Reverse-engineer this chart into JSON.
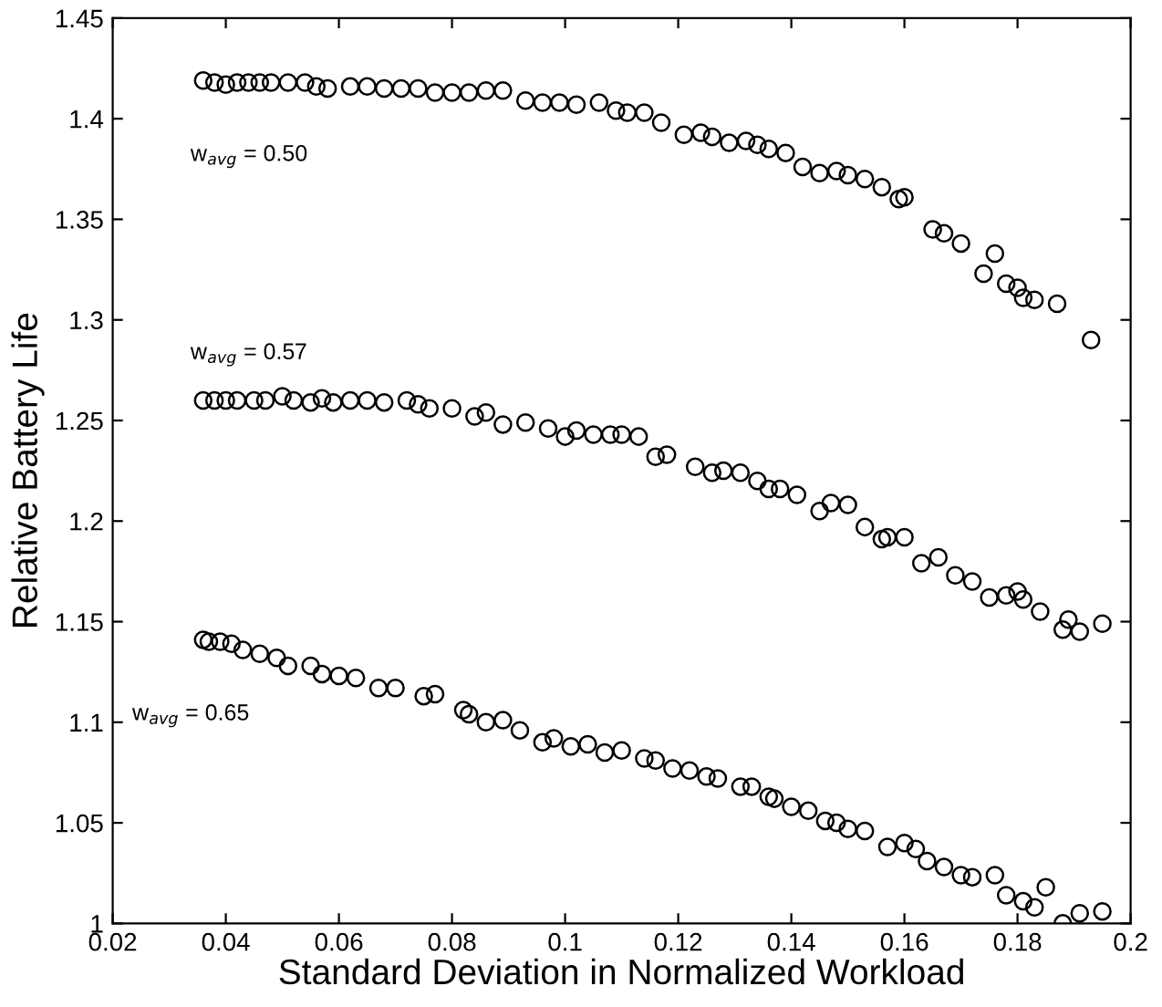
{
  "chart_data": {
    "type": "scatter",
    "xlabel": "Standard Deviation in Normalized Workload",
    "ylabel": "Relative Battery Life",
    "marker": "circle",
    "grid": false,
    "legend": false,
    "xlim": [
      0.02,
      0.2
    ],
    "xticks": [
      0.02,
      0.04,
      0.06,
      0.08,
      0.1,
      0.12,
      0.14,
      0.16,
      0.18,
      0.2
    ],
    "ylim": [
      1,
      1.45
    ],
    "yticks": [
      1,
      1.05,
      1.1,
      1.15,
      1.2,
      1.25,
      1.3,
      1.35,
      1.4,
      1.45
    ],
    "series": [
      {
        "name": "w$_{avg}$ = 0.50",
        "color": "#000000",
        "x": [
          0.036,
          0.038,
          0.04,
          0.042,
          0.044,
          0.046,
          0.048,
          0.051,
          0.054,
          0.056,
          0.058,
          0.062,
          0.065,
          0.068,
          0.071,
          0.074,
          0.077,
          0.08,
          0.083,
          0.086,
          0.089,
          0.093,
          0.096,
          0.099,
          0.102,
          0.106,
          0.109,
          0.111,
          0.114,
          0.117,
          0.121,
          0.124,
          0.126,
          0.129,
          0.132,
          0.134,
          0.136,
          0.139,
          0.142,
          0.145,
          0.148,
          0.15,
          0.153,
          0.156,
          0.159,
          0.16,
          0.165,
          0.167,
          0.17,
          0.174,
          0.176,
          0.178,
          0.18,
          0.181,
          0.183,
          0.187,
          0.193
        ],
        "values": [
          1.419,
          1.418,
          1.417,
          1.418,
          1.418,
          1.418,
          1.418,
          1.418,
          1.418,
          1.416,
          1.415,
          1.416,
          1.416,
          1.415,
          1.415,
          1.415,
          1.413,
          1.413,
          1.413,
          1.414,
          1.414,
          1.409,
          1.408,
          1.408,
          1.407,
          1.408,
          1.404,
          1.403,
          1.403,
          1.398,
          1.392,
          1.393,
          1.391,
          1.388,
          1.389,
          1.387,
          1.385,
          1.383,
          1.376,
          1.373,
          1.374,
          1.372,
          1.37,
          1.366,
          1.36,
          1.361,
          1.345,
          1.343,
          1.338,
          1.323,
          1.333,
          1.318,
          1.316,
          1.311,
          1.31,
          1.308,
          1.29
        ]
      },
      {
        "name": "w$_{avg}$ = 0.57",
        "color": "#000000",
        "x": [
          0.036,
          0.038,
          0.04,
          0.042,
          0.045,
          0.047,
          0.05,
          0.052,
          0.055,
          0.057,
          0.059,
          0.062,
          0.065,
          0.068,
          0.072,
          0.074,
          0.076,
          0.08,
          0.084,
          0.086,
          0.089,
          0.093,
          0.097,
          0.1,
          0.102,
          0.105,
          0.108,
          0.11,
          0.113,
          0.116,
          0.118,
          0.123,
          0.126,
          0.128,
          0.131,
          0.134,
          0.136,
          0.138,
          0.141,
          0.145,
          0.147,
          0.15,
          0.153,
          0.156,
          0.157,
          0.16,
          0.163,
          0.166,
          0.169,
          0.172,
          0.175,
          0.178,
          0.18,
          0.181,
          0.184,
          0.188,
          0.189,
          0.191,
          0.195
        ],
        "values": [
          1.26,
          1.26,
          1.26,
          1.26,
          1.26,
          1.26,
          1.262,
          1.26,
          1.259,
          1.261,
          1.259,
          1.26,
          1.26,
          1.259,
          1.26,
          1.258,
          1.256,
          1.256,
          1.252,
          1.254,
          1.248,
          1.249,
          1.246,
          1.242,
          1.245,
          1.243,
          1.243,
          1.243,
          1.242,
          1.232,
          1.233,
          1.227,
          1.224,
          1.225,
          1.224,
          1.22,
          1.216,
          1.216,
          1.213,
          1.205,
          1.209,
          1.208,
          1.197,
          1.191,
          1.192,
          1.192,
          1.179,
          1.182,
          1.173,
          1.17,
          1.162,
          1.163,
          1.165,
          1.161,
          1.155,
          1.146,
          1.151,
          1.145,
          1.149
        ]
      },
      {
        "name": "w$_{avg}$ = 0.65",
        "color": "#000000",
        "x": [
          0.036,
          0.037,
          0.039,
          0.041,
          0.043,
          0.046,
          0.049,
          0.051,
          0.055,
          0.057,
          0.06,
          0.063,
          0.067,
          0.07,
          0.075,
          0.077,
          0.082,
          0.083,
          0.086,
          0.089,
          0.092,
          0.096,
          0.098,
          0.101,
          0.104,
          0.107,
          0.11,
          0.114,
          0.116,
          0.119,
          0.122,
          0.125,
          0.127,
          0.131,
          0.133,
          0.136,
          0.137,
          0.14,
          0.143,
          0.146,
          0.148,
          0.15,
          0.153,
          0.157,
          0.16,
          0.162,
          0.164,
          0.167,
          0.17,
          0.172,
          0.176,
          0.178,
          0.181,
          0.183,
          0.185,
          0.188,
          0.191,
          0.195
        ],
        "values": [
          1.141,
          1.14,
          1.14,
          1.139,
          1.136,
          1.134,
          1.132,
          1.128,
          1.128,
          1.124,
          1.123,
          1.122,
          1.117,
          1.117,
          1.113,
          1.114,
          1.106,
          1.104,
          1.1,
          1.101,
          1.096,
          1.09,
          1.092,
          1.088,
          1.089,
          1.085,
          1.086,
          1.082,
          1.081,
          1.077,
          1.076,
          1.073,
          1.072,
          1.068,
          1.068,
          1.063,
          1.062,
          1.058,
          1.056,
          1.051,
          1.05,
          1.047,
          1.046,
          1.038,
          1.04,
          1.037,
          1.031,
          1.028,
          1.024,
          1.023,
          1.024,
          1.014,
          1.011,
          1.008,
          1.018,
          1.0,
          1.005,
          1.006
        ]
      }
    ]
  }
}
